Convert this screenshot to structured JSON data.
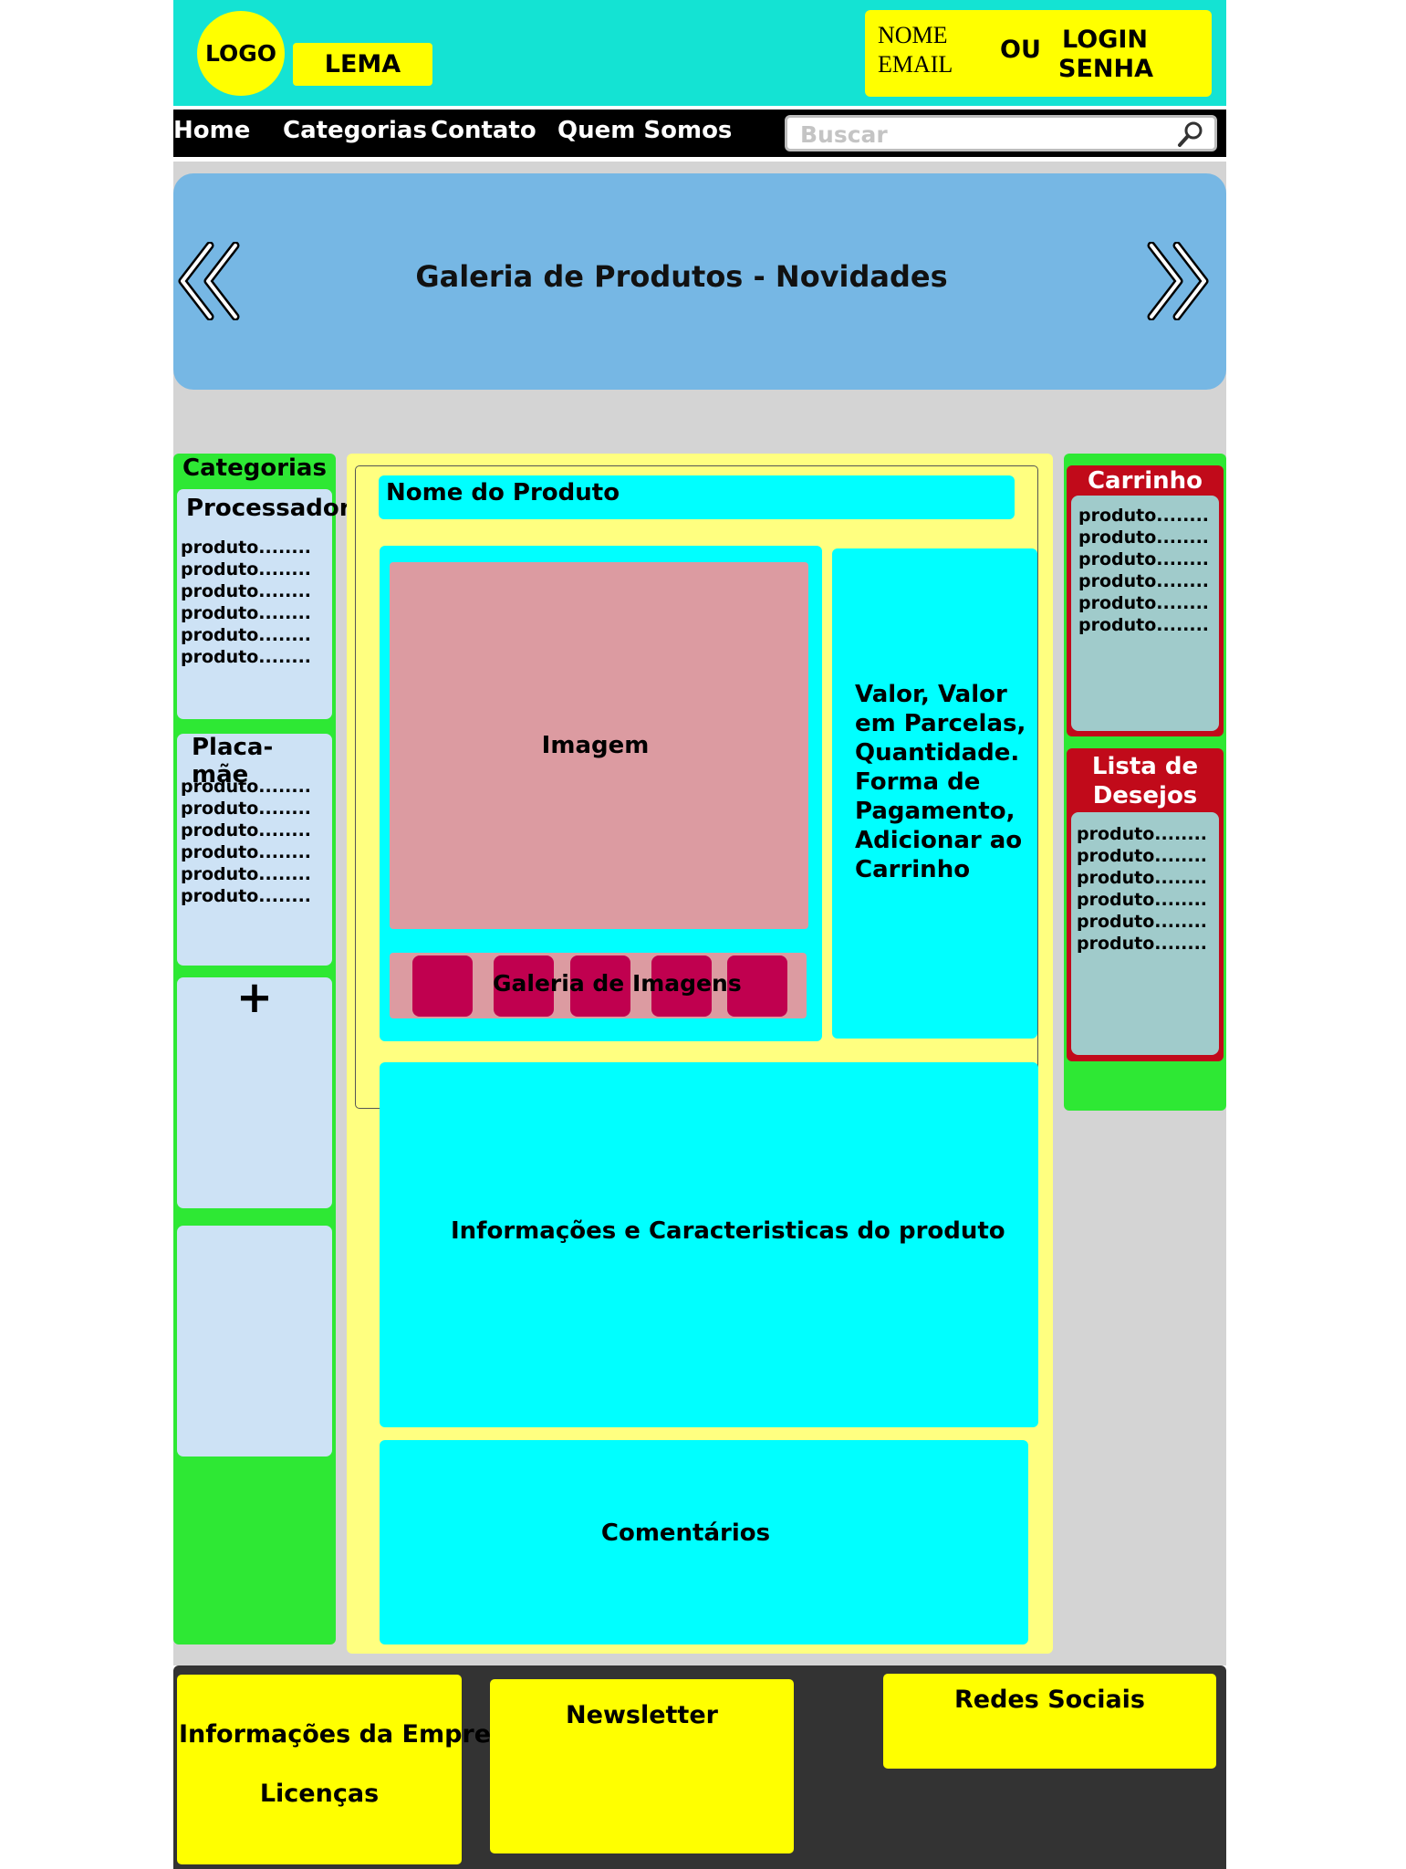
{
  "header": {
    "logo": "LOGO",
    "motto": "LEMA",
    "login_name": "NOME",
    "login_email": "EMAIL",
    "or_text": "OU",
    "login_button": "LOGIN",
    "password_text": "SENHA"
  },
  "nav": {
    "items": [
      {
        "label": "Home"
      },
      {
        "label": "Categorias"
      },
      {
        "label": "Contato"
      },
      {
        "label": "Quem Somos"
      }
    ],
    "search_placeholder": "Buscar"
  },
  "banner": {
    "title": "Galeria de Produtos - Novidades"
  },
  "sidebar": {
    "title": "Categorias",
    "groups": [
      {
        "title": "Processador",
        "items": [
          "produto........",
          "produto........",
          "produto........",
          "produto........",
          "produto........",
          "produto........"
        ]
      },
      {
        "title": "Placa- mãe",
        "items": [
          "produto........",
          "produto........",
          "produto........",
          "produto........",
          "produto........",
          "produto........"
        ]
      }
    ],
    "more_label": "+"
  },
  "product": {
    "name": "Nome do Produto",
    "image_label": "Imagem",
    "gallery_label": "Galeria de Imagens",
    "price_info": "Valor, Valor em Parcelas, Quantidade. Forma de Pagamento, Adicionar ao Carrinho",
    "info_label": "Informações e Caracteristicas do produto",
    "comments_label": "Comentários"
  },
  "cart": {
    "title": "Carrinho",
    "items": [
      "produto........",
      "produto........",
      "produto........",
      "produto........",
      "produto........",
      "produto........"
    ]
  },
  "wishlist": {
    "title": "Lista de Desejos",
    "items": [
      "produto........",
      "produto........",
      "produto........",
      "produto........",
      "produto........",
      "produto........"
    ]
  },
  "footer": {
    "company_info": "Informações da Empresa",
    "licenses": "Licenças",
    "newsletter": "Newsletter",
    "social": "Redes Sociais"
  },
  "colors": {
    "header_bg": "#14e3d3",
    "accent_yellow": "#ffff00",
    "sidebar_green": "#2ee834",
    "banner_blue": "#76b7e4",
    "cyan": "#00ffff",
    "image_pink": "#dc9ba1",
    "thumb_magenta": "#c0004f",
    "panel_red": "#c10a1a",
    "footer_dark": "#333333"
  }
}
